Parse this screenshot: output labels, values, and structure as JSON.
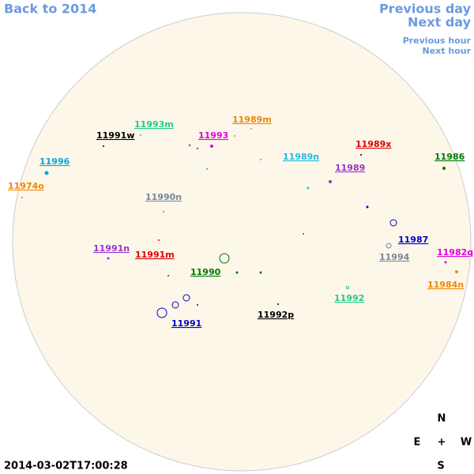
{
  "nav": {
    "back": "Back to 2014",
    "prev_day": "Previous day",
    "next_day": "Next day",
    "prev_hour": "Previous hour",
    "next_hour": "Next hour"
  },
  "regions": [
    "11991w",
    "11993m",
    "11993",
    "11989m",
    "11996",
    "11989n",
    "11989x",
    "11986",
    "11974o",
    "11989",
    "11990n",
    "11987",
    "11991n",
    "11991m",
    "11994",
    "11982q",
    "11990",
    "11984n",
    "11992",
    "11992p",
    "11991"
  ],
  "compass": {
    "n": "N",
    "e": "E",
    "center": "+",
    "w": "W",
    "s": "S"
  },
  "timestamp": "2014-03-02T17:00:28"
}
